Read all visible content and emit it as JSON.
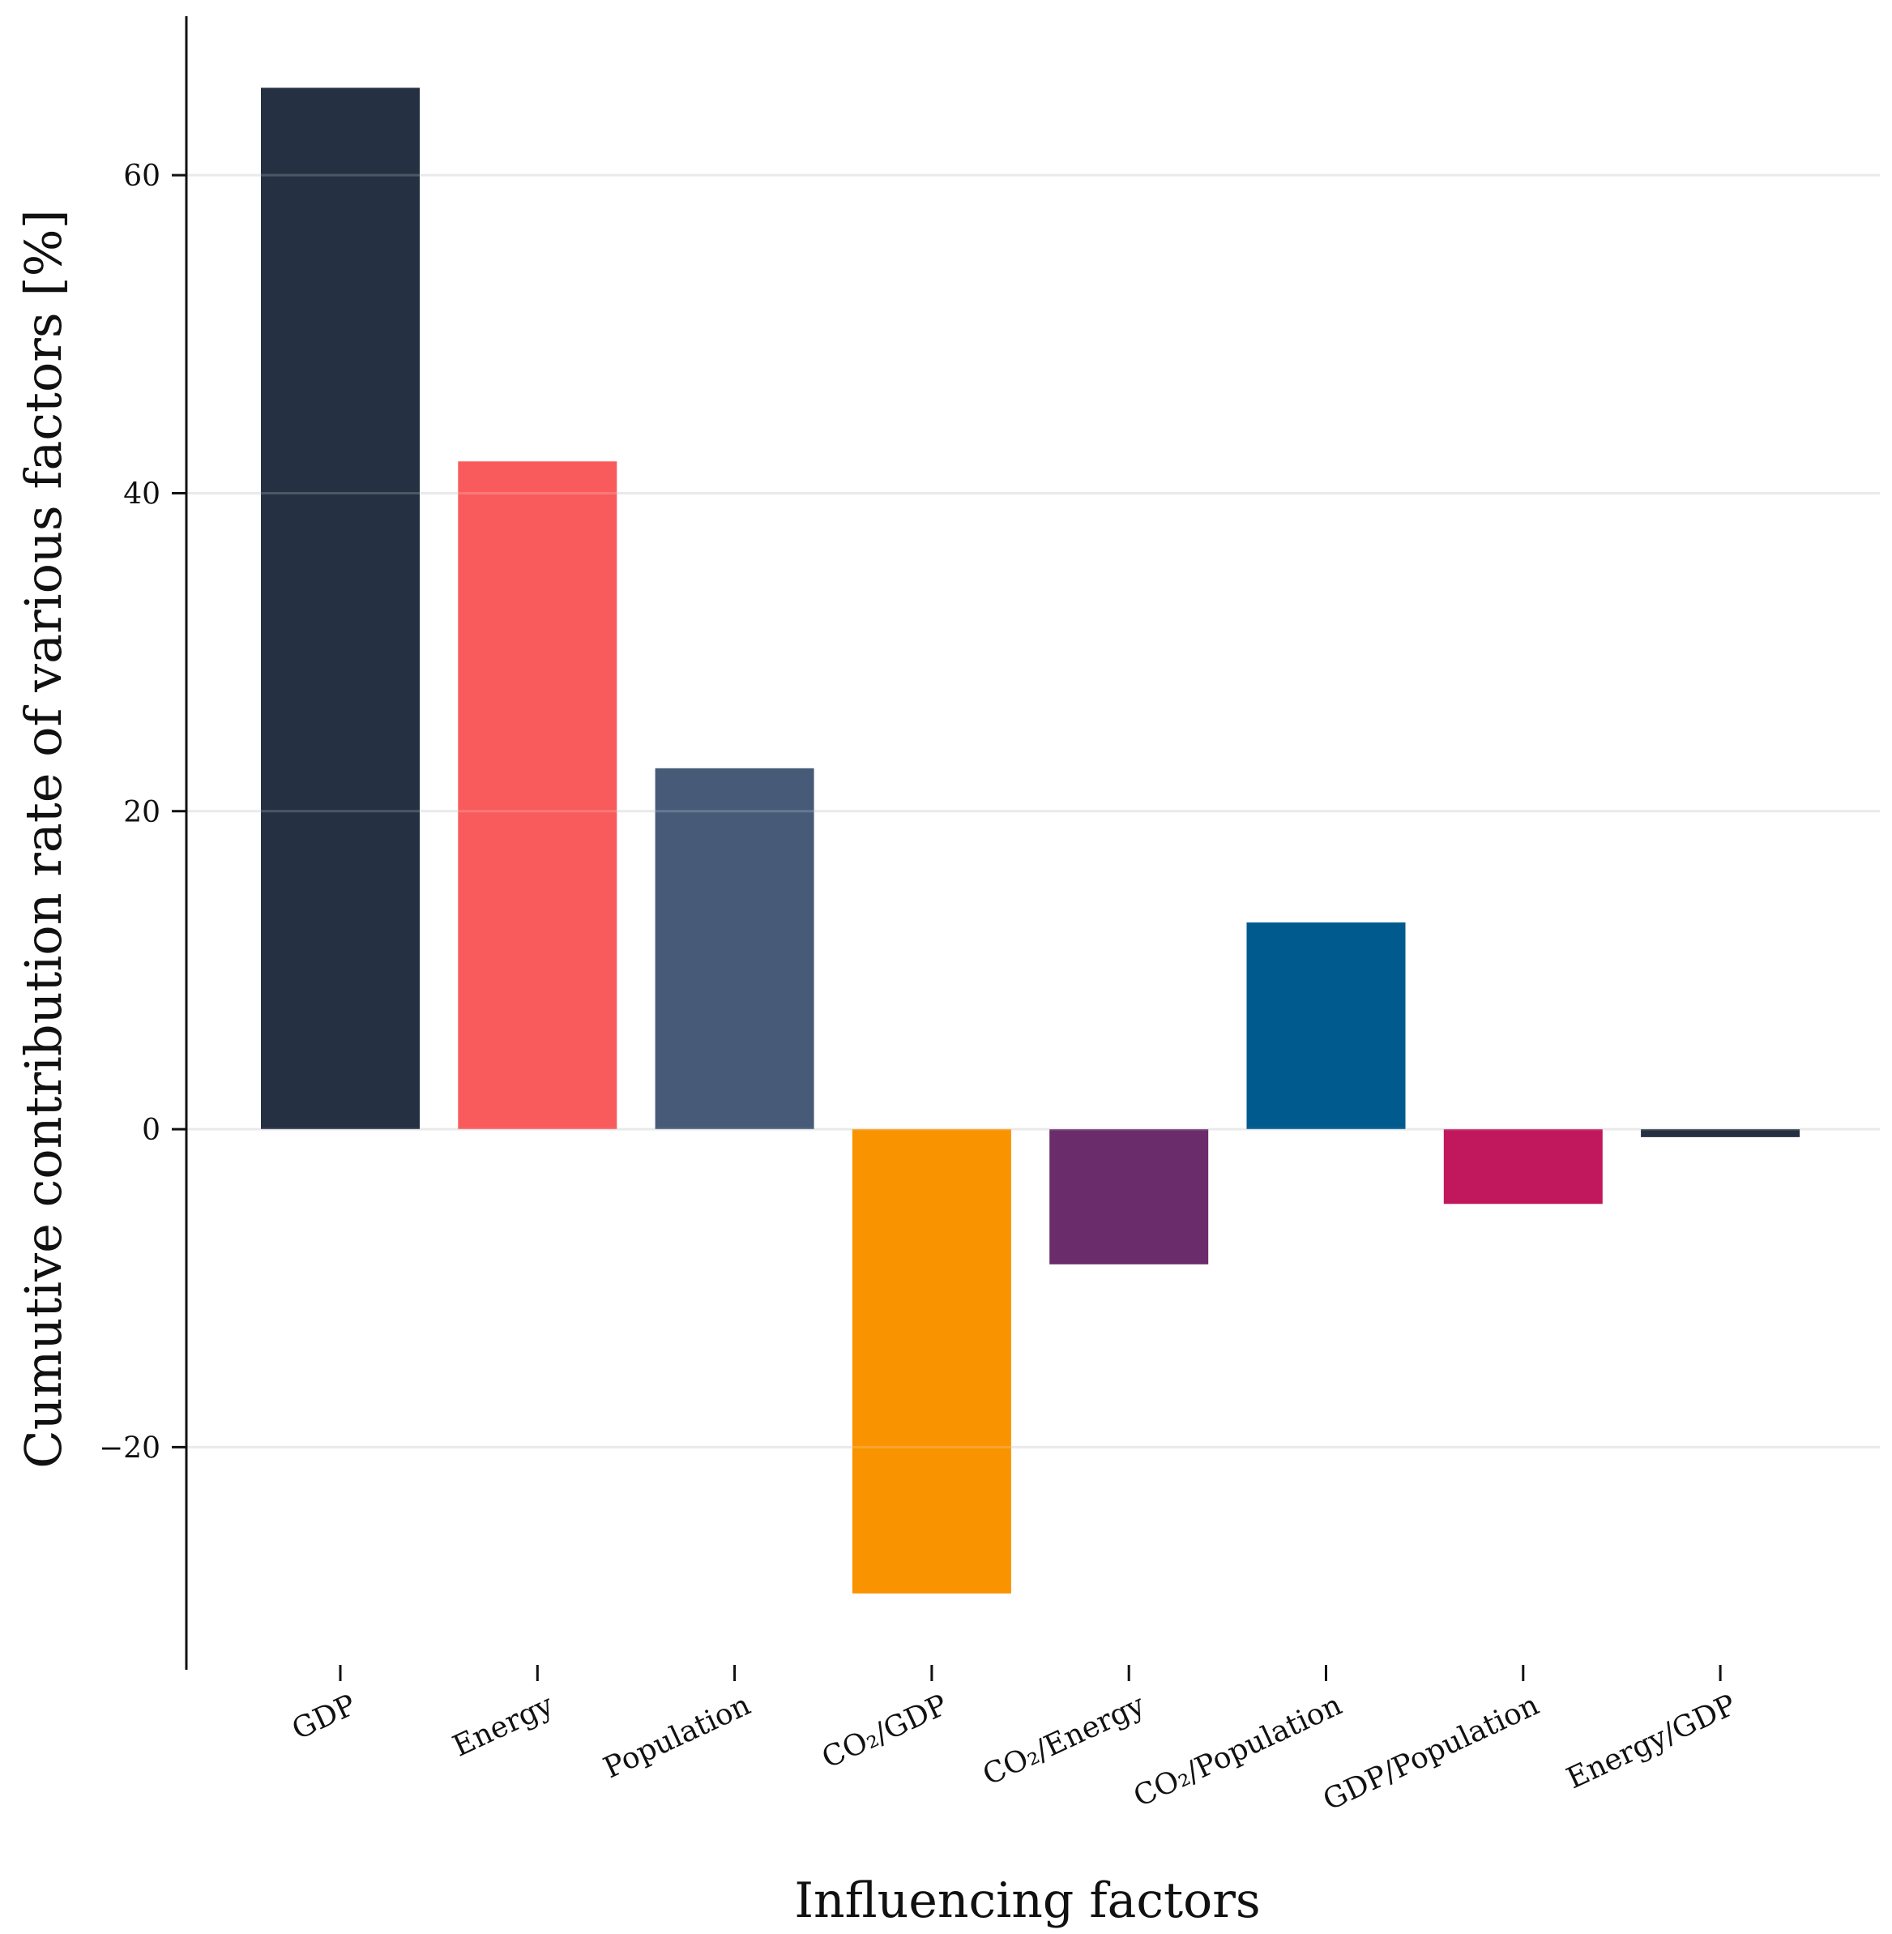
{
  "chart_data": {
    "type": "bar",
    "title": "",
    "xlabel": "Influencing factors",
    "ylabel": "Cumutive contribution rate of various factors [%]",
    "categories": [
      "GDP",
      "Energy",
      "Population",
      "CO₂/GDP",
      "CO₂/Energy",
      "CO₂/Population",
      "GDP/Population",
      "Energy/GDP"
    ],
    "values": [
      65.5,
      42.0,
      22.7,
      -29.2,
      -8.5,
      13.0,
      -4.7,
      -0.5
    ],
    "colors": [
      "#253142",
      "#f95b5c",
      "#475b78",
      "#f99300",
      "#6a2c6b",
      "#005a8d",
      "#c1175c",
      "#253142"
    ],
    "ylim": [
      -34,
      70
    ],
    "yticks": [
      -20,
      0,
      20,
      40,
      60
    ],
    "ytick_labels": [
      "−20",
      "0",
      "20",
      "40",
      "60"
    ],
    "grid": true
  }
}
